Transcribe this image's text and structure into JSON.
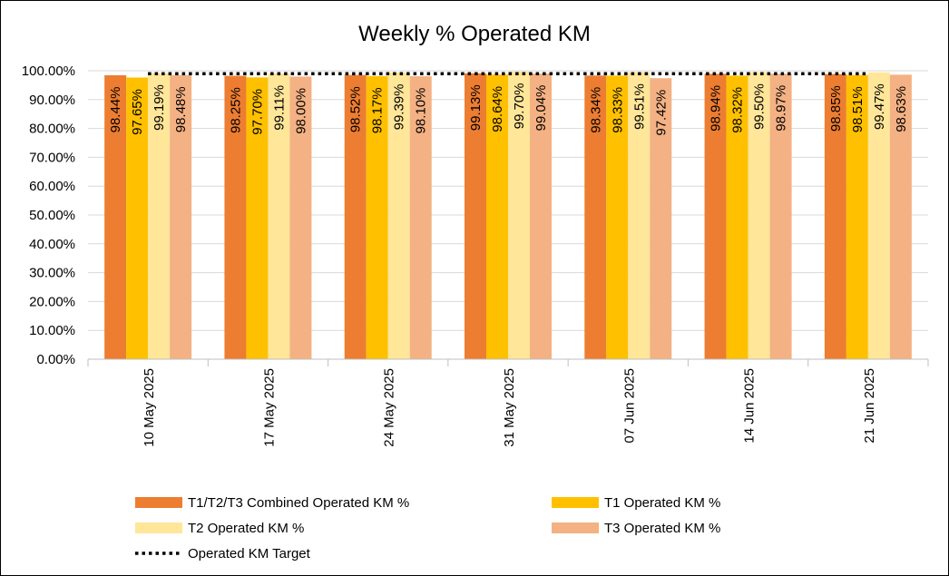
{
  "chart_data": {
    "type": "bar",
    "title": "Weekly % Operated KM",
    "categories": [
      "10 May 2025",
      "17 May 2025",
      "24 May 2025",
      "31 May 2025",
      "07 Jun 2025",
      "14 Jun 2025",
      "21 Jun 2025"
    ],
    "series": [
      {
        "name": "T1/T2/T3 Combined Operated KM %",
        "color": "#ED7D31",
        "values": [
          98.44,
          98.25,
          98.52,
          99.13,
          98.34,
          98.94,
          98.85
        ]
      },
      {
        "name": "T1 Operated KM %",
        "color": "#FFC000",
        "values": [
          97.65,
          97.7,
          98.17,
          98.64,
          98.33,
          98.32,
          98.51
        ]
      },
      {
        "name": "T2 Operated KM %",
        "color": "#FFE699",
        "values": [
          99.19,
          99.11,
          99.39,
          99.7,
          99.51,
          99.5,
          99.47
        ]
      },
      {
        "name": "T3 Operated KM %",
        "color": "#F4B183",
        "values": [
          98.48,
          98.0,
          98.1,
          99.04,
          97.42,
          98.97,
          98.63
        ]
      }
    ],
    "target": {
      "name": "Operated KM Target",
      "color": "#000000",
      "values": [
        99.0,
        99.0,
        99.0,
        99.0,
        99.0,
        99.0,
        99.0
      ]
    },
    "data_labels": [
      [
        "98.44%",
        "98.25%",
        "98.52%",
        "99.13%",
        "98.34%",
        "98.94%",
        "98.85%"
      ],
      [
        "97.65%",
        "97.70%",
        "98.17%",
        "98.64%",
        "98.33%",
        "98.32%",
        "98.51%"
      ],
      [
        "99.19%",
        "99.11%",
        "99.39%",
        "99.70%",
        "99.51%",
        "99.50%",
        "99.47%"
      ],
      [
        "98.48%",
        "98.00%",
        "98.10%",
        "99.04%",
        "97.42%",
        "98.97%",
        "98.63%"
      ]
    ],
    "y_ticks": [
      "0.00%",
      "10.00%",
      "20.00%",
      "30.00%",
      "40.00%",
      "50.00%",
      "60.00%",
      "70.00%",
      "80.00%",
      "90.00%",
      "100.00%"
    ],
    "ylim": [
      0,
      100
    ],
    "grid": true,
    "legend_position": "bottom",
    "xlabel": "",
    "ylabel": ""
  }
}
